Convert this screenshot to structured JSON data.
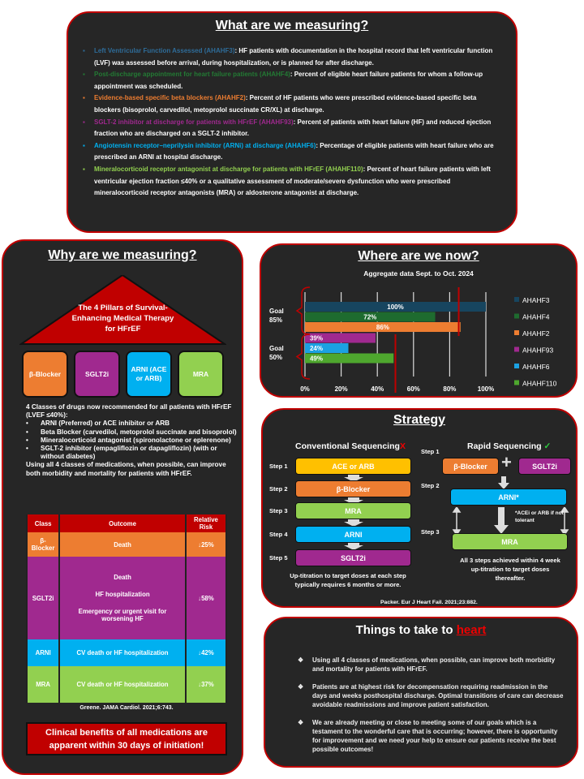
{
  "colors": {
    "border": "#c00000",
    "panel": "#262626",
    "orange": "#ed7d31",
    "purple": "#a0298f",
    "blue": "#00b0f0",
    "green": "#92d050",
    "yellow": "#ffc000"
  },
  "measuring": {
    "title": "What are we measuring?",
    "items": [
      {
        "label": "Left Ventricular Function Assessed (AHAHF3)",
        "text": ": HF patients with documentation in the hospital record that left ventricular function (LVF) was assessed before arrival, during  hospitalization, or is planned for after discharge.",
        "color": "#2e6c99"
      },
      {
        "label": "Post-discharge appointment for heart failure patients  (AHAHF4)",
        "text": ": Percent of eligible heart failure patients for whom a follow-up appointment was scheduled.",
        "color": "#237a34"
      },
      {
        "label": "Evidence-based specific beta blockers (AHAHF2)",
        "text": ": Percent of HF patients who were prescribed evidence-based specific beta blockers (bisoprolol, carvedilol, metoprolol succinate CR/XL) at discharge.",
        "color": "#ed7d31"
      },
      {
        "label": "SGLT-2 inhibitor at discharge for patients with HFrEF (AHAHF93)",
        "text": ": Percent of patients with heart failure (HF) and reduced ejection fraction who are discharged on a SGLT-2 inhibitor.",
        "color": "#a0298f"
      },
      {
        "label": "Angiotensin receptor–neprilysin inhibitor (ARNi) at discharge (AHAHF6)",
        "text": ": Percentage of eligible patients with heart failure who are prescribed an ARNI at hospital discharge.",
        "color": "#00b0f0"
      },
      {
        "label": "Mineralocorticoid receptor antagonist at discharge for patients with HFrEF (AHAHF110)",
        "text": ": Percent of heart failure patients with left ventricular ejection fraction ≤40% or a qualitative assessment of moderate/severe dysfunction who were prescribed mineralocorticoid receptor antagonists (MRA) or aldosterone antagonist at discharge.",
        "color": "#92d050"
      }
    ]
  },
  "why": {
    "title": "Why are we measuring?",
    "pillars_title": "The 4 Pillars of Survival-Enhancing Medical Therapy for HFrEF",
    "pillars": [
      {
        "label": "β-Blocker",
        "color": "#ed7d31"
      },
      {
        "label": "SGLT2i",
        "color": "#a0298f"
      },
      {
        "label": "ARNI (ACE or ARB)",
        "color": "#00b0f0"
      },
      {
        "label": "MRA",
        "color": "#92d050"
      }
    ],
    "intro": "4 Classes of drugs now recommended for all patients with HFrEF (LVEF ≤40%):",
    "drugs": [
      "ARNI (Preferred) or ACE inhibitor or ARB",
      "Beta Blocker (carvedilol, metoprolol succinate and bisoprolol)",
      "Mineralocorticoid antagonist (spironolactone or eplerenone)",
      "SGLT-2 inhibitor (empagliflozin or dapagliflozin) (with or without diabetes)"
    ],
    "summary": "Using all 4 classes of medications, when possible, can improve both morbidity and mortality for patients with HFrEF.",
    "table": {
      "headers": [
        "Class",
        "Outcome",
        "Relative Risk"
      ],
      "rows": [
        {
          "class": "β-Blocker",
          "outcome": [
            "Death"
          ],
          "risk": "↓25%",
          "color": "#ed7d31"
        },
        {
          "class": "SGLT2i",
          "outcome": [
            "Death",
            "HF hospitalization",
            "Emergency or urgent visit for worsening HF"
          ],
          "risk": "↓58%",
          "color": "#a0298f"
        },
        {
          "class": "ARNI",
          "outcome": [
            "CV death or HF hospitalization"
          ],
          "risk": "↓42%",
          "color": "#00b0f0"
        },
        {
          "class": "MRA",
          "outcome": [
            "CV death or HF hospitalization"
          ],
          "risk": "↓37%",
          "color": "#92d050"
        }
      ]
    },
    "citation": "Greene. JAMA Cardiol. 2021;6:743.",
    "callout": "Clinical benefits of all medications are apparent within 30 days of initiation!"
  },
  "where": {
    "title": "Where are we now?"
  },
  "chart_data": {
    "type": "bar",
    "orientation": "horizontal",
    "title": "Aggregate data Sept. to Oct. 2024",
    "categories": [
      "AHAHF3",
      "AHAHF4",
      "AHAHF2",
      "AHAHF93",
      "AHAHF6",
      "AHAHF110"
    ],
    "values": [
      100,
      72,
      86,
      39,
      24,
      49
    ],
    "data_labels": [
      "100%",
      "72%",
      "86%",
      "39%",
      "24%",
      "49%"
    ],
    "colors": [
      "#17455f",
      "#1e6b2f",
      "#ed7d31",
      "#a0298f",
      "#1ba1e2",
      "#4ea72e"
    ],
    "xlim": [
      0,
      100
    ],
    "xticks": [
      "0%",
      "20%",
      "40%",
      "60%",
      "80%",
      "100%"
    ],
    "grid": true,
    "legend": "right",
    "goals": [
      {
        "label": "Goal 85%",
        "value": 85,
        "measures": [
          "AHAHF3",
          "AHAHF4",
          "AHAHF2"
        ]
      },
      {
        "label": "Goal 50%",
        "value": 50,
        "measures": [
          "AHAHF93",
          "AHAHF6",
          "AHAHF110"
        ]
      }
    ]
  },
  "strategy": {
    "title": "Strategy",
    "conventional": {
      "title": "Conventional Sequencing",
      "mark": "X",
      "steps": [
        {
          "step": "Step 1",
          "drug": "ACE or ARB",
          "color": "#ffc000"
        },
        {
          "step": "Step 2",
          "drug": "β-Blocker",
          "color": "#ed7d31"
        },
        {
          "step": "Step 3",
          "drug": "MRA",
          "color": "#92d050"
        },
        {
          "step": "Step 4",
          "drug": "ARNI",
          "color": "#00b0f0"
        },
        {
          "step": "Step 5",
          "drug": "SGLT2i",
          "color": "#a0298f"
        }
      ],
      "note": "Up-titration to target doses at each step typically requires 6 months or more."
    },
    "rapid": {
      "title": "Rapid Sequencing",
      "mark": "✓",
      "step1": "Step 1",
      "step2": "Step 2",
      "step3": "Step 3",
      "drug_a": "β-Blocker",
      "plus": "+",
      "drug_b": "SGLT2i",
      "drug_c": "ARNI*",
      "drug_d": "MRA",
      "footnote": "*ACEi or ARB if not tolerant",
      "note": "All 3 steps achieved within 4 week up-titration to target doses thereafter."
    },
    "citation": "Packer. Eur J Heart Fail. 2021;23:882."
  },
  "things": {
    "title_prefix": "Things to take to ",
    "title_accent": "heart",
    "bullet": "❖",
    "items": [
      "Using all 4 classes of medications, when possible, can improve both morbidity and mortality for patients with HFrEF.",
      "Patients are at highest risk for decompensation requiring readmission in the days and weeks posthospital discharge. Optimal transitions of care can decrease avoidable readmissions and improve patient satisfaction.",
      "We are already meeting or close to meeting some of our goals which is a testament to the wonderful care that is occurring; however, there is opportunity for improvement and we need your help to  ensure our patients receive the best possible outcomes!"
    ]
  }
}
